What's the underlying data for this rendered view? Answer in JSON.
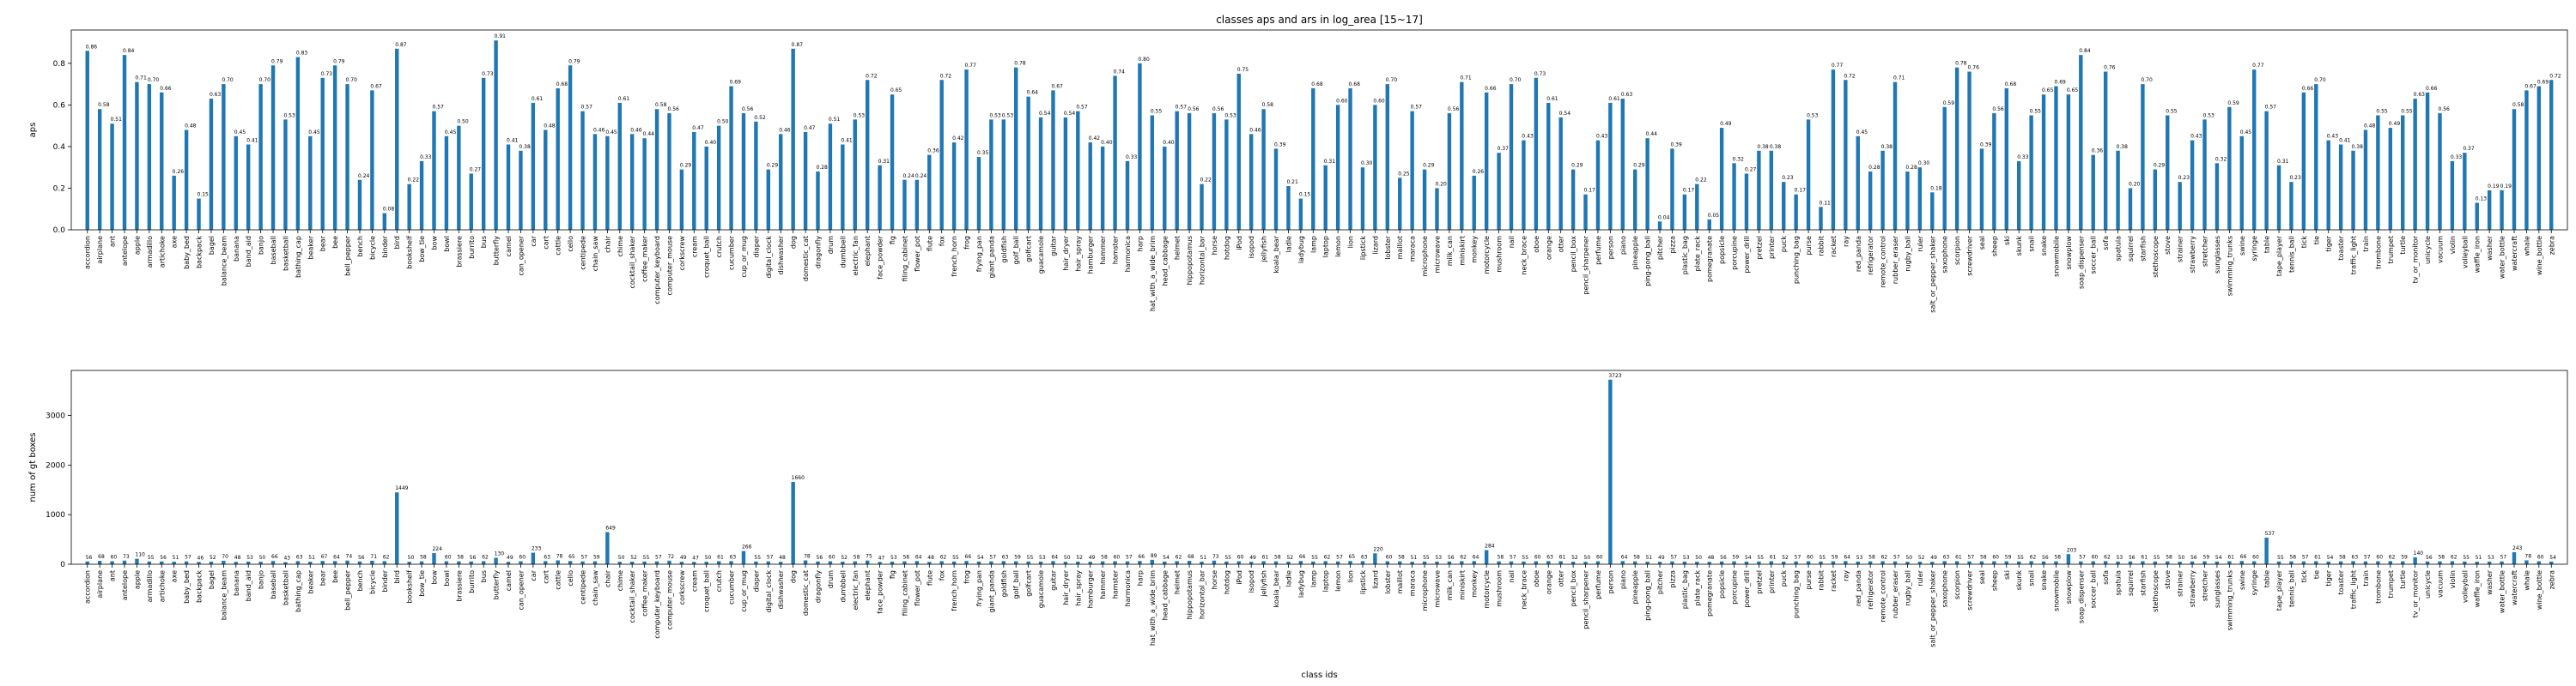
{
  "chart_data": [
    {
      "type": "bar",
      "title": "classes aps and ars in log_area [15~17]",
      "ylabel": "aps",
      "color": "#1f77b4",
      "categories": [
        "accordion",
        "airplane",
        "ant",
        "antelope",
        "apple",
        "armadillo",
        "artichoke",
        "axe",
        "baby_bed",
        "backpack",
        "bagel",
        "balance_beam",
        "banana",
        "band_aid",
        "banjo",
        "baseball",
        "basketball",
        "bathing_cap",
        "beaker",
        "bear",
        "bee",
        "bell_pepper",
        "bench",
        "bicycle",
        "binder",
        "bird",
        "bookshelf",
        "bow_tie",
        "bow",
        "bowl",
        "brassiere",
        "burrito",
        "bus",
        "butterfly",
        "camel",
        "can_opener",
        "car",
        "cart",
        "cattle",
        "cello",
        "centipede",
        "chain_saw",
        "chair",
        "chime",
        "cocktail_shaker",
        "coffee_maker",
        "computer_keyboard",
        "computer_mouse",
        "corkscrew",
        "cream",
        "croquet_ball",
        "crutch",
        "cucumber",
        "cup_or_mug",
        "diaper",
        "digital_clock",
        "dishwasher",
        "dog",
        "domestic_cat",
        "dragonfly",
        "drum",
        "dumbbell",
        "electric_fan",
        "elephant",
        "face_powder",
        "fig",
        "filing_cabinet",
        "flower_pot",
        "flute",
        "fox",
        "french_horn",
        "frog",
        "frying_pan",
        "giant_panda",
        "goldfish",
        "golf_ball",
        "golfcart",
        "guacamole",
        "guitar",
        "hair_dryer",
        "hair_spray",
        "hamburger",
        "hammer",
        "hamster",
        "harmonica",
        "harp",
        "hat_with_a_wide_brim",
        "head_cabbage",
        "helmet",
        "hippopotamus",
        "horizontal_bar",
        "horse",
        "hotdog",
        "iPod",
        "isopod",
        "jellyfish",
        "koala_bear",
        "ladle",
        "ladybug",
        "lamp",
        "laptop",
        "lemon",
        "lion",
        "lipstick",
        "lizard",
        "lobster",
        "maillot",
        "maraca",
        "microphone",
        "microwave",
        "milk_can",
        "miniskirt",
        "monkey",
        "motorcycle",
        "mushroom",
        "nail",
        "neck_brace",
        "oboe",
        "orange",
        "otter",
        "pencil_box",
        "pencil_sharpener",
        "perfume",
        "person",
        "piano",
        "pineapple",
        "ping-pong_ball",
        "pitcher",
        "pizza",
        "plastic_bag",
        "plate_rack",
        "pomegranate",
        "popsicle",
        "porcupine",
        "power_drill",
        "pretzel",
        "printer",
        "puck",
        "punching_bag",
        "purse",
        "rabbit",
        "racket",
        "ray",
        "red_panda",
        "refrigerator",
        "remote_control",
        "rubber_eraser",
        "rugby_ball",
        "ruler",
        "salt_or_pepper_shaker",
        "saxophone",
        "scorpion",
        "screwdriver",
        "seal",
        "sheep",
        "ski",
        "skunk",
        "snail",
        "snake",
        "snowmobile",
        "snowplow",
        "soap_dispenser",
        "soccer_ball",
        "sofa",
        "spatula",
        "squirrel",
        "starfish",
        "stethoscope",
        "stove",
        "strainer",
        "strawberry",
        "stretcher",
        "sunglasses",
        "swimming_trunks",
        "swine",
        "syringe",
        "table",
        "tape_player",
        "tennis_ball",
        "tick",
        "tie",
        "tiger",
        "toaster",
        "traffic_light",
        "train",
        "trombone",
        "trumpet",
        "turtle",
        "tv_or_monitor",
        "unicycle",
        "vacuum",
        "violin",
        "volleyball",
        "waffle_iron",
        "washer",
        "water_bottle",
        "watercraft",
        "whale",
        "wine_bottle",
        "zebra"
      ],
      "values": [
        0.86,
        0.58,
        0.51,
        0.84,
        0.71,
        0.7,
        0.66,
        0.26,
        0.48,
        0.15,
        0.63,
        0.7,
        0.45,
        0.41,
        0.7,
        0.79,
        0.53,
        0.83,
        0.45,
        0.73,
        0.79,
        0.7,
        0.24,
        0.67,
        0.08,
        0.87,
        0.22,
        0.33,
        0.57,
        0.45,
        0.5,
        0.27,
        0.73,
        0.91,
        0.41,
        0.38,
        0.61,
        0.48,
        0.68,
        0.79,
        0.57,
        0.46,
        0.45,
        0.61,
        0.46,
        0.44,
        0.58,
        0.56,
        0.29,
        0.47,
        0.4,
        0.5,
        0.69,
        0.56,
        0.52,
        0.29,
        0.46,
        0.87,
        0.47,
        0.28,
        0.51,
        0.41,
        0.53,
        0.72,
        0.31,
        0.65,
        0.24,
        0.24,
        0.36,
        0.72,
        0.42,
        0.77,
        0.35,
        0.53,
        0.53,
        0.78,
        0.64,
        0.54,
        0.67,
        0.54,
        0.57,
        0.42,
        0.4,
        0.74,
        0.33,
        0.8,
        0.55,
        0.4,
        0.57,
        0.56,
        0.22,
        0.56,
        0.53,
        0.75,
        0.46,
        0.58,
        0.39,
        0.21,
        0.15,
        0.68,
        0.31,
        0.6,
        0.68,
        0.3,
        0.6,
        0.7,
        0.25,
        0.57,
        0.29,
        0.2,
        0.56,
        0.71,
        0.26,
        0.66,
        0.37,
        0.7,
        0.43,
        0.73,
        0.61,
        0.54,
        0.29,
        0.17,
        0.43,
        0.61,
        0.63,
        0.29,
        0.44,
        0.04,
        0.39,
        0.17,
        0.22,
        0.05,
        0.49,
        0.32,
        0.27,
        0.38,
        0.38,
        0.23,
        0.17,
        0.53,
        0.11,
        0.77,
        0.72,
        0.45,
        0.28,
        0.38,
        0.71,
        0.28,
        0.3,
        0.18,
        0.59,
        0.78,
        0.76,
        0.39,
        0.56,
        0.68,
        0.33,
        0.55,
        0.65,
        0.69,
        0.65,
        0.84,
        0.36,
        0.76,
        0.38,
        0.2,
        0.7,
        0.29,
        0.55,
        0.23,
        0.43,
        0.53,
        0.32,
        0.59,
        0.45,
        0.77,
        0.57,
        0.31,
        0.23,
        0.66,
        0.7,
        0.43,
        0.41,
        0.38,
        0.48,
        0.55,
        0.49,
        0.55,
        0.63,
        0.66,
        0.56,
        0.33,
        0.37,
        0.13,
        0.19,
        0.19,
        0.58,
        0.67,
        0.69,
        0.72
      ],
      "value_labels": [
        "0.86",
        "0.58",
        "0.51",
        "0.84",
        "0.71",
        "0.70",
        "0.66",
        "0.26",
        "0.48",
        "0.15",
        "0.63",
        "0.70",
        "0.45",
        "0.41",
        "0.70",
        "0.79",
        "0.53",
        "0.83",
        "0.45",
        "0.73",
        "0.79",
        "0.70",
        "0.24",
        "0.67",
        "0.08",
        "0.87",
        "0.22",
        "0.33",
        "0.57",
        "0.45",
        "0.50",
        "0.27",
        "0.73",
        "0.91",
        "0.41",
        "0.38",
        "0.61",
        "0.48",
        "0.68",
        "0.79",
        "0.57",
        "0.46",
        "0.45",
        "0.61",
        "0.46",
        "0.44",
        "0.58",
        "0.56",
        "0.29",
        "0.47",
        "0.40",
        "0.50",
        "0.69",
        "0.56",
        "0.52",
        "0.29",
        "0.46",
        "0.87",
        "0.47",
        "0.28",
        "0.51",
        "0.41",
        "0.53",
        "0.72",
        "0.31",
        "0.65",
        "0.24",
        "0.24",
        "0.36",
        "0.72",
        "0.42",
        "0.77",
        "0.35",
        "0.53",
        "0.53",
        "0.78",
        "0.64",
        "0.54",
        "0.67",
        "0.54",
        "0.57",
        "0.42",
        "0.40",
        "0.74",
        "0.33",
        "0.80",
        "0.55",
        "0.40",
        "0.57",
        "0.56",
        "0.22",
        "0.56",
        "0.53",
        "0.75",
        "0.46",
        "0.58",
        "0.39",
        "0.21",
        "0.15",
        "0.68",
        "0.31",
        "0.60",
        "0.68",
        "0.30",
        "0.60",
        "0.70",
        "0.25",
        "0.57",
        "0.29",
        "0.20",
        "0.56",
        "0.71",
        "0.26",
        "0.66",
        "0.37",
        "0.70",
        "0.43",
        "0.73",
        "0.61",
        "0.54",
        "0.29",
        "0.17",
        "0.43",
        "0.61",
        "0.63",
        "0.29",
        "0.44",
        "0.04",
        "0.39",
        "0.17",
        "0.22",
        "0.05",
        "0.49",
        "0.32",
        "0.27",
        "0.38",
        "0.38",
        "0.23",
        "0.17",
        "0.53",
        "0.11",
        "0.77",
        "0.72",
        "0.45",
        "0.28",
        "0.38",
        "0.71",
        "0.28",
        "0.30",
        "0.18",
        "0.59",
        "0.78",
        "0.76",
        "0.39",
        "0.56",
        "0.68",
        "0.33",
        "0.55",
        "0.65",
        "0.69",
        "0.65",
        "0.84",
        "0.36",
        "0.76",
        "0.38",
        "0.20",
        "0.70",
        "0.29",
        "0.55",
        "0.23",
        "0.43",
        "0.53",
        "0.32",
        "0.59",
        "0.45",
        "0.77",
        "0.57",
        "0.31",
        "0.23",
        "0.66",
        "0.70",
        "0.43",
        "0.41",
        "0.38",
        "0.48",
        "0.55",
        "0.49",
        "0.55",
        "0.63",
        "0.66",
        "0.56",
        "0.33",
        "0.37",
        "0.13",
        "0.19",
        "0.19",
        "0.58",
        "0.67",
        "0.69",
        "0.72"
      ],
      "ylim": [
        0,
        0.96
      ],
      "yticks": [
        {
          "value": 0,
          "label": "0.0"
        },
        {
          "value": 0.2,
          "label": "0.2"
        },
        {
          "value": 0.4,
          "label": "0.4"
        },
        {
          "value": 0.6,
          "label": "0.6"
        },
        {
          "value": 0.8,
          "label": "0.8"
        }
      ]
    },
    {
      "type": "bar",
      "ylabel": "num of gt boxes",
      "xlabel": "class ids",
      "color": "#1f77b4",
      "categories": [
        "accordion",
        "airplane",
        "ant",
        "antelope",
        "apple",
        "armadillo",
        "artichoke",
        "axe",
        "baby_bed",
        "backpack",
        "bagel",
        "balance_beam",
        "banana",
        "band_aid",
        "banjo",
        "baseball",
        "basketball",
        "bathing_cap",
        "beaker",
        "bear",
        "bee",
        "bell_pepper",
        "bench",
        "bicycle",
        "binder",
        "bird",
        "bookshelf",
        "bow_tie",
        "bow",
        "bowl",
        "brassiere",
        "burrito",
        "bus",
        "butterfly",
        "camel",
        "can_opener",
        "car",
        "cart",
        "cattle",
        "cello",
        "centipede",
        "chain_saw",
        "chair",
        "chime",
        "cocktail_shaker",
        "coffee_maker",
        "computer_keyboard",
        "computer_mouse",
        "corkscrew",
        "cream",
        "croquet_ball",
        "crutch",
        "cucumber",
        "cup_or_mug",
        "diaper",
        "digital_clock",
        "dishwasher",
        "dog",
        "domestic_cat",
        "dragonfly",
        "drum",
        "dumbbell",
        "electric_fan",
        "elephant",
        "face_powder",
        "fig",
        "filing_cabinet",
        "flower_pot",
        "flute",
        "fox",
        "french_horn",
        "frog",
        "frying_pan",
        "giant_panda",
        "goldfish",
        "golf_ball",
        "golfcart",
        "guacamole",
        "guitar",
        "hair_dryer",
        "hair_spray",
        "hamburger",
        "hammer",
        "hamster",
        "harmonica",
        "harp",
        "hat_with_a_wide_brim",
        "head_cabbage",
        "helmet",
        "hippopotamus",
        "horizontal_bar",
        "horse",
        "hotdog",
        "iPod",
        "isopod",
        "jellyfish",
        "koala_bear",
        "ladle",
        "ladybug",
        "lamp",
        "laptop",
        "lemon",
        "lion",
        "lipstick",
        "lizard",
        "lobster",
        "maillot",
        "maraca",
        "microphone",
        "microwave",
        "milk_can",
        "miniskirt",
        "monkey",
        "motorcycle",
        "mushroom",
        "nail",
        "neck_brace",
        "oboe",
        "orange",
        "otter",
        "pencil_box",
        "pencil_sharpener",
        "perfume",
        "person",
        "piano",
        "pineapple",
        "ping-pong_ball",
        "pitcher",
        "pizza",
        "plastic_bag",
        "plate_rack",
        "pomegranate",
        "popsicle",
        "porcupine",
        "power_drill",
        "pretzel",
        "printer",
        "puck",
        "punching_bag",
        "purse",
        "rabbit",
        "racket",
        "ray",
        "red_panda",
        "refrigerator",
        "remote_control",
        "rubber_eraser",
        "rugby_ball",
        "ruler",
        "salt_or_pepper_shaker",
        "saxophone",
        "scorpion",
        "screwdriver",
        "seal",
        "sheep",
        "ski",
        "skunk",
        "snail",
        "snake",
        "snowmobile",
        "snowplow",
        "soap_dispenser",
        "soccer_ball",
        "sofa",
        "spatula",
        "squirrel",
        "starfish",
        "stethoscope",
        "stove",
        "strainer",
        "strawberry",
        "stretcher",
        "sunglasses",
        "swimming_trunks",
        "swine",
        "syringe",
        "table",
        "tape_player",
        "tennis_ball",
        "tick",
        "tie",
        "tiger",
        "toaster",
        "traffic_light",
        "train",
        "trombone",
        "trumpet",
        "turtle",
        "tv_or_monitor",
        "unicycle",
        "vacuum",
        "violin",
        "volleyball",
        "waffle_iron",
        "washer",
        "water_bottle",
        "watercraft",
        "whale",
        "wine_bottle",
        "zebra"
      ],
      "values": [
        56,
        68,
        60,
        73,
        110,
        55,
        56,
        51,
        57,
        46,
        52,
        70,
        48,
        53,
        50,
        66,
        43,
        63,
        51,
        67,
        64,
        74,
        56,
        71,
        62,
        1449,
        50,
        58,
        224,
        60,
        58,
        56,
        62,
        130,
        49,
        60,
        233,
        63,
        78,
        65,
        57,
        59,
        649,
        50,
        52,
        55,
        57,
        72,
        49,
        47,
        50,
        61,
        63,
        266,
        55,
        57,
        48,
        1660,
        78,
        56,
        60,
        52,
        58,
        75,
        47,
        53,
        58,
        64,
        48,
        62,
        55,
        66,
        54,
        57,
        63,
        59,
        55,
        53,
        64,
        50,
        52,
        49,
        58,
        60,
        57,
        66,
        89,
        54,
        62,
        68,
        51,
        73,
        55,
        60,
        49,
        61,
        58,
        52,
        66,
        55,
        62,
        57,
        65,
        63,
        220,
        60,
        58,
        51,
        55,
        53,
        56,
        62,
        64,
        284,
        58,
        57,
        55,
        60,
        63,
        61,
        52,
        50,
        60,
        3723,
        64,
        58,
        51,
        49,
        57,
        53,
        50,
        48,
        56,
        59,
        54,
        55,
        61,
        52,
        57,
        60,
        55,
        59,
        64,
        53,
        58,
        62,
        57,
        50,
        52,
        49,
        63,
        61,
        57,
        58,
        60,
        59,
        55,
        62,
        56,
        58,
        203,
        57,
        60,
        62,
        53,
        56,
        61,
        55,
        58,
        50,
        56,
        59,
        54,
        61,
        66,
        60,
        537,
        55,
        58,
        57,
        61,
        54,
        58,
        63,
        57,
        60,
        62,
        59,
        140,
        56,
        58,
        62,
        55,
        51,
        53,
        57,
        243,
        78,
        60,
        54
      ],
      "ylim": [
        0,
        3909
      ],
      "yticks": [
        0,
        1000,
        2000,
        3000
      ]
    }
  ]
}
